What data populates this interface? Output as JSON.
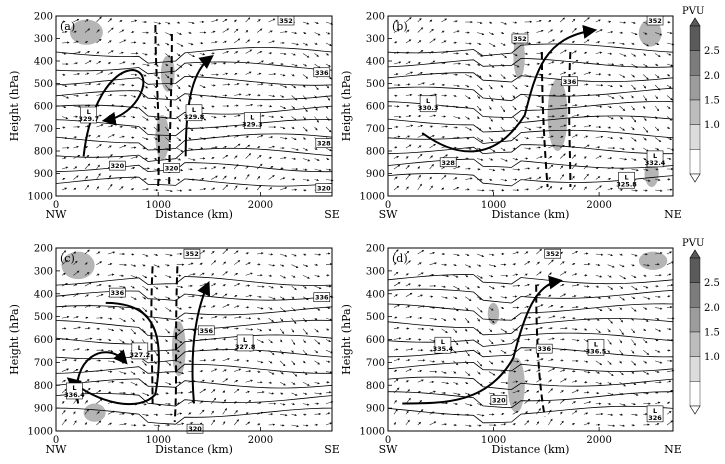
{
  "figure": {
    "y_axis_label": "Height (hPa)",
    "x_axis_label": "Distance (km)",
    "colorbar_unit": "PVU",
    "colorbar_ticks": [
      "2.5",
      "2.0",
      "1.5",
      "1.0"
    ],
    "colorbar_colors": [
      "#5a5a5a",
      "#7c7c7c",
      "#9c9c9c",
      "#bdbdbd",
      "#dcdcdc",
      "#ffffff"
    ]
  },
  "chart_data": [
    {
      "type": "contour",
      "panel": "(a)",
      "left_label": "NW",
      "right_label": "SE",
      "xlabel": "Distance (km)",
      "ylabel": "Height (hPa)",
      "xlim": [
        0,
        2700
      ],
      "ylim": [
        1000,
        200
      ],
      "y_reversed": true,
      "x_ticks": [
        "0",
        "1000",
        "2000"
      ],
      "y_ticks": [
        "200",
        "300",
        "400",
        "500",
        "600",
        "700",
        "800",
        "900",
        "1000"
      ],
      "labels": [
        {
          "text": "352",
          "x": 2250,
          "y": 220
        },
        {
          "text": "336",
          "x": 2600,
          "y": 450
        },
        {
          "text": "L\n329.7",
          "x": 320,
          "y": 640
        },
        {
          "text": "L\n329.8",
          "x": 1350,
          "y": 630
        },
        {
          "text": "L\n329.3",
          "x": 1920,
          "y": 665
        },
        {
          "text": "328",
          "x": 2620,
          "y": 765
        },
        {
          "text": "320",
          "x": 600,
          "y": 865
        },
        {
          "text": "320",
          "x": 1130,
          "y": 875
        },
        {
          "text": "320",
          "x": 2620,
          "y": 965
        }
      ]
    },
    {
      "type": "contour",
      "panel": "(b)",
      "left_label": "SW",
      "right_label": "NE",
      "xlabel": "Distance (km)",
      "ylabel": "Height (hPa)",
      "xlim": [
        0,
        2700
      ],
      "ylim": [
        1000,
        200
      ],
      "y_reversed": true,
      "x_ticks": [
        "0",
        "1000",
        "2000"
      ],
      "y_ticks": [
        "200",
        "300",
        "400",
        "500",
        "600",
        "700",
        "800",
        "900",
        "1000"
      ],
      "labels": [
        {
          "text": "352",
          "x": 2530,
          "y": 220
        },
        {
          "text": "352",
          "x": 1250,
          "y": 300
        },
        {
          "text": "336",
          "x": 1720,
          "y": 490
        },
        {
          "text": "L\n330.3",
          "x": 380,
          "y": 590
        },
        {
          "text": "328",
          "x": 570,
          "y": 850
        },
        {
          "text": "L\n332.4",
          "x": 2530,
          "y": 835
        },
        {
          "text": "L\n325.8",
          "x": 2260,
          "y": 930
        }
      ]
    },
    {
      "type": "contour",
      "panel": "(c)",
      "left_label": "NW",
      "right_label": "SE",
      "xlabel": "Distance (km)",
      "ylabel": "Height (hPa)",
      "xlim": [
        0,
        2700
      ],
      "ylim": [
        1000,
        200
      ],
      "y_reversed": true,
      "x_ticks": [
        "0",
        "1000",
        "2000"
      ],
      "y_ticks": [
        "200",
        "300",
        "400",
        "500",
        "600",
        "700",
        "800",
        "900",
        "1000"
      ],
      "labels": [
        {
          "text": "352",
          "x": 1330,
          "y": 225
        },
        {
          "text": "336",
          "x": 600,
          "y": 395
        },
        {
          "text": "336",
          "x": 2600,
          "y": 415
        },
        {
          "text": "356",
          "x": 1470,
          "y": 560
        },
        {
          "text": "L\n327.2",
          "x": 820,
          "y": 650
        },
        {
          "text": "L\n327.8",
          "x": 1850,
          "y": 615
        },
        {
          "text": "L\n336.4",
          "x": 180,
          "y": 825
        },
        {
          "text": "320",
          "x": 1360,
          "y": 990
        }
      ]
    },
    {
      "type": "contour",
      "panel": "(d)",
      "left_label": "SW",
      "right_label": "NE",
      "xlabel": "Distance (km)",
      "ylabel": "Height (hPa)",
      "xlim": [
        0,
        2700
      ],
      "ylim": [
        1000,
        200
      ],
      "y_reversed": true,
      "x_ticks": [
        "0",
        "1000",
        "2000"
      ],
      "y_ticks": [
        "200",
        "300",
        "400",
        "500",
        "600",
        "700",
        "800",
        "900",
        "1000"
      ],
      "labels": [
        {
          "text": "352",
          "x": 1560,
          "y": 225
        },
        {
          "text": "L\n335.4",
          "x": 520,
          "y": 625
        },
        {
          "text": "336",
          "x": 1480,
          "y": 640
        },
        {
          "text": "L\n336.5",
          "x": 1970,
          "y": 635
        },
        {
          "text": "320",
          "x": 1050,
          "y": 865
        },
        {
          "text": "L\n326",
          "x": 2530,
          "y": 925
        }
      ]
    }
  ]
}
